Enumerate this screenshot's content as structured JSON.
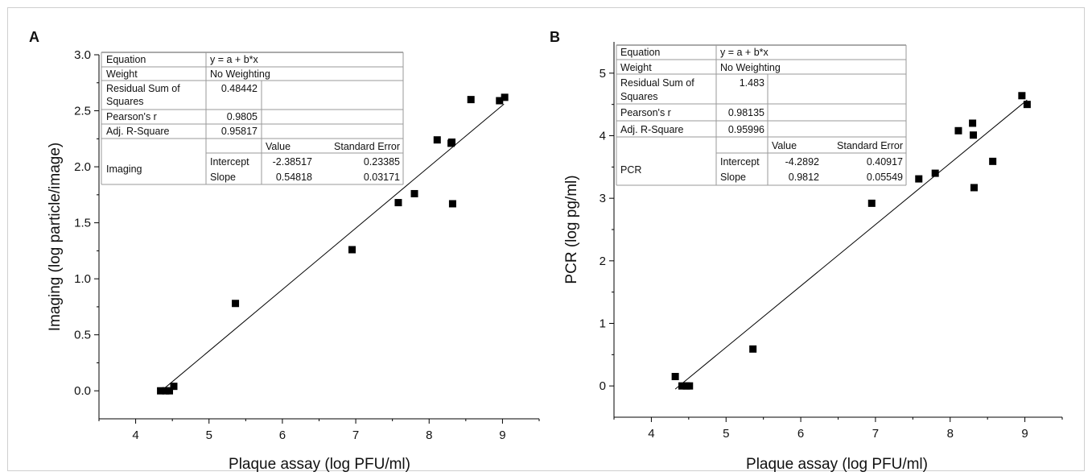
{
  "chart_data": [
    {
      "panel_label": "A",
      "type": "scatter",
      "xlabel": "Plaque assay (log PFU/ml)",
      "ylabel": "Imaging (log particle/image)",
      "xlim": [
        3.5,
        9.5
      ],
      "ylim": [
        -0.25,
        3.0
      ],
      "xticks": [
        "4",
        "5",
        "6",
        "7",
        "8",
        "9"
      ],
      "yticks": [
        "0.0",
        "0.5",
        "1.0",
        "1.5",
        "2.0",
        "2.5",
        "3.0"
      ],
      "xtick_values": [
        4,
        5,
        6,
        7,
        8,
        9
      ],
      "ytick_values": [
        0,
        0.5,
        1.0,
        1.5,
        2.0,
        2.5,
        3.0
      ],
      "points": [
        [
          4.34,
          0.0
        ],
        [
          4.41,
          0.0
        ],
        [
          4.46,
          0.0
        ],
        [
          4.52,
          0.04
        ],
        [
          5.36,
          0.78
        ],
        [
          6.95,
          1.26
        ],
        [
          7.58,
          1.68
        ],
        [
          7.8,
          1.76
        ],
        [
          8.11,
          2.24
        ],
        [
          8.3,
          2.21
        ],
        [
          8.31,
          2.22
        ],
        [
          8.32,
          1.67
        ],
        [
          8.57,
          2.6
        ],
        [
          8.96,
          2.59
        ],
        [
          9.03,
          2.62
        ]
      ],
      "fit": {
        "intercept": -2.38517,
        "slope": 0.54818,
        "x_range": [
          4.35,
          9.02
        ]
      },
      "stats_table": {
        "equation_label": "Equation",
        "equation_value": "y = a + b*x",
        "weight_label": "Weight",
        "weight_value": "No Weighting",
        "rss_label_1": "Residual Sum of",
        "rss_label_2": "Squares",
        "rss_value": "0.48442",
        "pearson_label": "Pearson's r",
        "pearson_value": "0.9805",
        "adjr_label": "Adj. R-Square",
        "adjr_value": "0.95817",
        "value_header": "Value",
        "se_header": "Standard Error",
        "model_label": "Imaging",
        "intercept_label": "Intercept",
        "intercept_value": "-2.38517",
        "intercept_se": "0.23385",
        "slope_label": "Slope",
        "slope_value": "0.54818",
        "slope_se": "0.03171"
      }
    },
    {
      "panel_label": "B",
      "type": "scatter",
      "xlabel": "Plaque assay (log PFU/ml)",
      "ylabel": "PCR (log pg/ml)",
      "xlim": [
        3.5,
        9.5
      ],
      "ylim": [
        -0.5,
        5.5
      ],
      "xticks": [
        "4",
        "5",
        "6",
        "7",
        "8",
        "9"
      ],
      "yticks": [
        "0",
        "1",
        "2",
        "3",
        "4",
        "5"
      ],
      "xtick_values": [
        4,
        5,
        6,
        7,
        8,
        9
      ],
      "ytick_values": [
        0,
        1,
        2,
        3,
        4,
        5
      ],
      "points": [
        [
          4.32,
          0.15
        ],
        [
          4.41,
          0.0
        ],
        [
          4.47,
          0.0
        ],
        [
          4.51,
          0.0
        ],
        [
          5.36,
          0.59
        ],
        [
          6.95,
          2.92
        ],
        [
          7.58,
          3.31
        ],
        [
          7.8,
          3.4
        ],
        [
          8.11,
          4.08
        ],
        [
          8.3,
          4.2
        ],
        [
          8.31,
          4.01
        ],
        [
          8.32,
          3.17
        ],
        [
          8.57,
          3.59
        ],
        [
          8.96,
          4.64
        ],
        [
          9.03,
          4.5
        ]
      ],
      "fit": {
        "intercept": -4.2892,
        "slope": 0.9812,
        "x_range": [
          4.32,
          9.03
        ]
      },
      "stats_table": {
        "equation_label": "Equation",
        "equation_value": "y = a + b*x",
        "weight_label": "Weight",
        "weight_value": "No Weighting",
        "rss_label_1": "Residual Sum of",
        "rss_label_2": "Squares",
        "rss_value": "1.483",
        "pearson_label": "Pearson's r",
        "pearson_value": "0.98135",
        "adjr_label": "Adj. R-Square",
        "adjr_value": "0.95996",
        "value_header": "Value",
        "se_header": "Standard Error",
        "model_label": "PCR",
        "intercept_label": "Intercept",
        "intercept_value": "-4.2892",
        "intercept_se": "0.40917",
        "slope_label": "Slope",
        "slope_value": "0.9812",
        "slope_se": "0.05549"
      }
    }
  ]
}
